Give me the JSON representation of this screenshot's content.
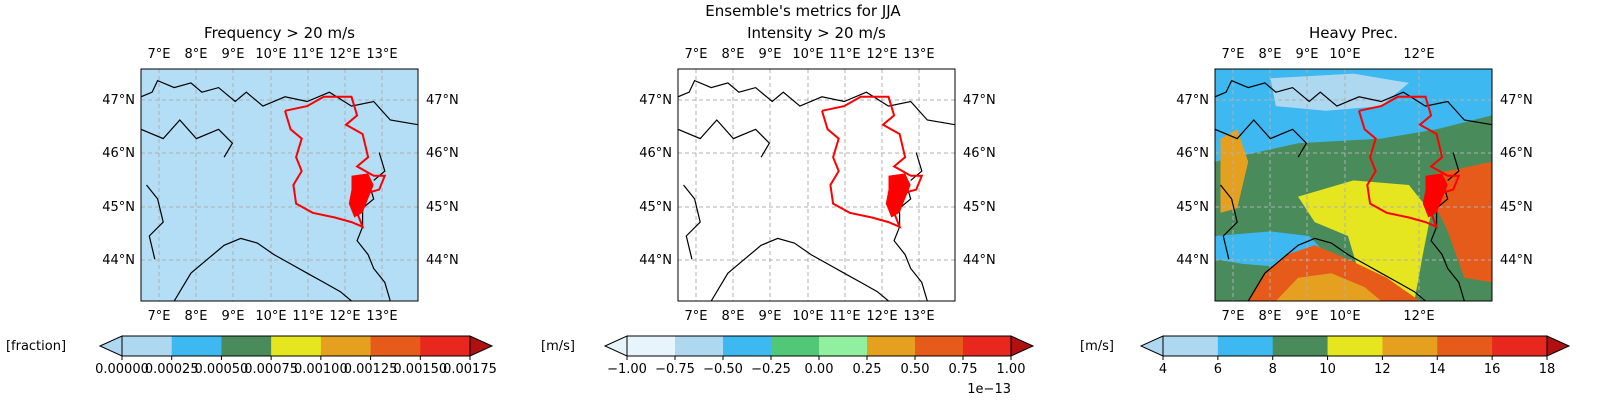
{
  "suptitle": "Ensemble's metrics for JJA",
  "panels": [
    {
      "title": "Frequency > 20 m/s",
      "lon_ticks": [
        "7°E",
        "8°E",
        "9°E",
        "10°E",
        "11°E",
        "12°E",
        "13°E"
      ],
      "lat_ticks": [
        "47°N",
        "46°N",
        "45°N",
        "44°N"
      ],
      "field": "light-blue",
      "colorbar": {
        "unit_label": "[fraction]",
        "ticks": [
          "0.00000",
          "0.00025",
          "0.00050",
          "0.00075",
          "0.00100",
          "0.00125",
          "0.00150",
          "0.00175"
        ],
        "offset_text": "",
        "colors": [
          "#add8f0",
          "#3db8f0",
          "#4a8b5c",
          "#e6e620",
          "#e6a020",
          "#e65a1a",
          "#e8281e"
        ],
        "extend": "both"
      }
    },
    {
      "title": "Intensity > 20 m/s",
      "lon_ticks": [
        "7°E",
        "8°E",
        "9°E",
        "10°E",
        "11°E",
        "12°E",
        "13°E"
      ],
      "lat_ticks": [
        "47°N",
        "46°N",
        "45°N",
        "44°N"
      ],
      "field": "white",
      "colorbar": {
        "unit_label": "[m/s]",
        "ticks": [
          "−1.00",
          "−0.75",
          "−0.50",
          "−0.25",
          "0.00",
          "0.25",
          "0.50",
          "0.75",
          "1.00"
        ],
        "offset_text": "1e−13",
        "colors": [
          "#e8f4fb",
          "#add8f0",
          "#3db8f0",
          "#50c878",
          "#90f0a0",
          "#e6a020",
          "#e65a1a",
          "#e8281e"
        ],
        "extend": "both"
      }
    },
    {
      "title": "Heavy Prec.",
      "lon_ticks": [
        "7°E",
        "8°E",
        "9°E",
        "10°E",
        "12°E"
      ],
      "lat_ticks": [
        "47°N",
        "46°N",
        "45°N",
        "44°N"
      ],
      "field": "mixed",
      "colorbar": {
        "unit_label": "[m/s]",
        "ticks": [
          "4",
          "6",
          "8",
          "10",
          "12",
          "14",
          "16",
          "18"
        ],
        "offset_text": "",
        "colors": [
          "#add8f0",
          "#3db8f0",
          "#4a8b5c",
          "#e6e620",
          "#e6a020",
          "#e65a1a",
          "#e8281e"
        ],
        "extend": "both"
      }
    }
  ],
  "chart_data": {
    "type": "heatmap",
    "title": "Ensemble's metrics for JJA",
    "x_range_lon_deg": [
      6.5,
      14.0
    ],
    "y_range_lat_deg": [
      43.2,
      47.5
    ],
    "grid": true,
    "maps": [
      {
        "title": "Frequency > 20 m/s",
        "colorbar_label": "[fraction]",
        "levels": [
          0,
          0.00025,
          0.0005,
          0.00075,
          0.001,
          0.00125,
          0.0015,
          0.00175
        ]
      },
      {
        "title": "Intensity > 20 m/s",
        "colorbar_label": "[m/s]",
        "levels": [
          -1.0,
          -0.75,
          -0.5,
          -0.25,
          0.0,
          0.25,
          0.5,
          0.75,
          1.0
        ],
        "scale": "1e-13"
      },
      {
        "title": "Heavy Prec.",
        "colorbar_label": "[m/s]",
        "levels": [
          4,
          6,
          8,
          10,
          12,
          14,
          16,
          18
        ]
      }
    ]
  }
}
